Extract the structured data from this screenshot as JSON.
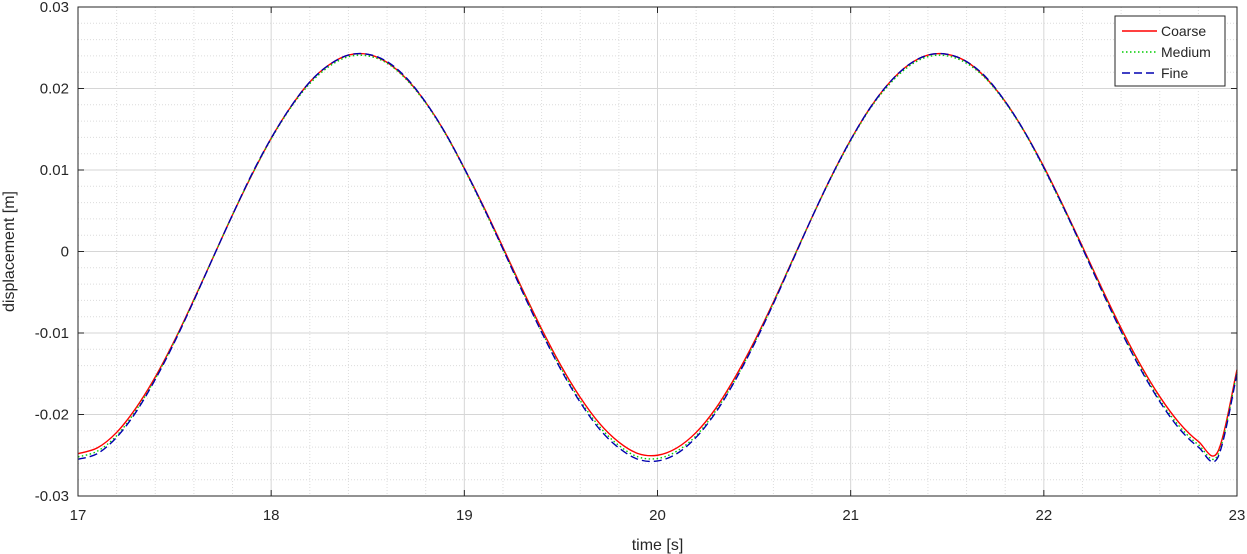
{
  "chart_data": {
    "type": "line",
    "xlabel": "time [s]",
    "ylabel": "displacement [m]",
    "xlim": [
      17,
      23
    ],
    "ylim": [
      -0.03,
      0.03
    ],
    "xticks": [
      17,
      18,
      19,
      20,
      21,
      22,
      23
    ],
    "yticks": [
      -0.03,
      -0.02,
      -0.01,
      0,
      0.01,
      0.02,
      0.03
    ],
    "xtick_labels": [
      "17",
      "18",
      "19",
      "20",
      "21",
      "22",
      "23"
    ],
    "ytick_labels": [
      "-0.03",
      "-0.02",
      "-0.01",
      "0",
      "0.01",
      "0.02",
      "0.03"
    ],
    "grid": true,
    "minor_grid": true,
    "legend_position": "top-right",
    "x": [
      17.0,
      17.1,
      17.2,
      17.3,
      17.4,
      17.5,
      17.6,
      17.7,
      17.8,
      17.9,
      18.0,
      18.1,
      18.2,
      18.3,
      18.4,
      18.5,
      18.6,
      18.7,
      18.8,
      18.9,
      19.0,
      19.1,
      19.2,
      19.3,
      19.4,
      19.5,
      19.6,
      19.7,
      19.8,
      19.9,
      20.0,
      20.1,
      20.2,
      20.3,
      20.4,
      20.5,
      20.6,
      20.7,
      20.8,
      20.9,
      21.0,
      21.1,
      21.2,
      21.3,
      21.4,
      21.5,
      21.6,
      21.7,
      21.8,
      21.9,
      22.0,
      22.1,
      22.2,
      22.3,
      22.4,
      22.5,
      22.6,
      22.7,
      22.8,
      22.9,
      23.0
    ],
    "series": [
      {
        "name": "Coarse",
        "color": "#ff0000",
        "dash": "solid",
        "values": [
          -0.0248,
          -0.0241,
          -0.0222,
          -0.0192,
          -0.0154,
          -0.0109,
          -0.0059,
          -0.0007,
          0.0045,
          0.0094,
          0.0139,
          0.0177,
          0.0208,
          0.0229,
          0.0241,
          0.0242,
          0.0232,
          0.0212,
          0.0183,
          0.0146,
          0.0102,
          0.0055,
          0.0005,
          -0.0046,
          -0.0095,
          -0.014,
          -0.0179,
          -0.0211,
          -0.0234,
          -0.0248,
          -0.025,
          -0.0241,
          -0.0222,
          -0.0193,
          -0.0155,
          -0.0111,
          -0.0062,
          -0.001,
          0.0042,
          0.0092,
          0.0137,
          0.0176,
          0.0207,
          0.0229,
          0.0241,
          0.0242,
          0.0233,
          0.0213,
          0.0184,
          0.0147,
          0.0104,
          0.0056,
          0.0006,
          -0.0045,
          -0.0094,
          -0.0139,
          -0.0178,
          -0.021,
          -0.0233,
          -0.0246,
          -0.0145
        ]
      },
      {
        "name": "Medium",
        "color": "#00cc00",
        "dash": "dotted",
        "values": [
          -0.0252,
          -0.0245,
          -0.0226,
          -0.0195,
          -0.0156,
          -0.011,
          -0.006,
          -0.0007,
          0.0045,
          0.0094,
          0.0138,
          0.0176,
          0.0206,
          0.0227,
          0.0239,
          0.024,
          0.0231,
          0.0211,
          0.0182,
          0.0145,
          0.0101,
          0.0053,
          0.0003,
          -0.0048,
          -0.0098,
          -0.0143,
          -0.0183,
          -0.0215,
          -0.0238,
          -0.0252,
          -0.0254,
          -0.0245,
          -0.0226,
          -0.0196,
          -0.0158,
          -0.0113,
          -0.0063,
          -0.001,
          0.0042,
          0.0091,
          0.0136,
          0.0175,
          0.0205,
          0.0227,
          0.0239,
          0.024,
          0.0231,
          0.0212,
          0.0183,
          0.0146,
          0.0102,
          0.0054,
          0.0004,
          -0.0047,
          -0.0097,
          -0.0142,
          -0.0182,
          -0.0214,
          -0.0237,
          -0.025,
          -0.0148
        ]
      },
      {
        "name": "Fine",
        "color": "#0000b0",
        "dash": "dashed",
        "values": [
          -0.0255,
          -0.0248,
          -0.0228,
          -0.0197,
          -0.0157,
          -0.0111,
          -0.006,
          -0.0007,
          0.0045,
          0.0095,
          0.0139,
          0.0177,
          0.0208,
          0.0229,
          0.0241,
          0.0242,
          0.0233,
          0.0213,
          0.0183,
          0.0146,
          0.0102,
          0.0054,
          0.0003,
          -0.0049,
          -0.0099,
          -0.0145,
          -0.0185,
          -0.0218,
          -0.0241,
          -0.0255,
          -0.0257,
          -0.0248,
          -0.0228,
          -0.0198,
          -0.0159,
          -0.0114,
          -0.0064,
          -0.0011,
          0.0042,
          0.0092,
          0.0137,
          0.0176,
          0.0207,
          0.0229,
          0.0241,
          0.0242,
          0.0233,
          0.0214,
          0.0184,
          0.0147,
          0.0103,
          0.0055,
          0.0004,
          -0.0048,
          -0.0098,
          -0.0144,
          -0.0184,
          -0.0217,
          -0.024,
          -0.0253,
          -0.015
        ]
      }
    ]
  }
}
